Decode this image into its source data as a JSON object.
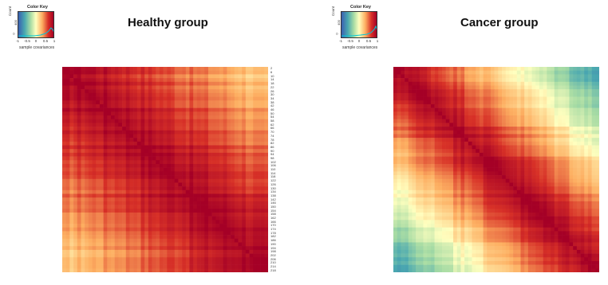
{
  "chart_data": [
    {
      "type": "heatmap",
      "title": "Healthy group",
      "color_key": {
        "title": "Color Key",
        "xlabel": "sample covariances",
        "ylabel": "Count",
        "ticks": [
          "-1",
          "-0.5",
          "0",
          "0.5",
          "1"
        ],
        "count_ticks": [
          "0",
          "400"
        ]
      },
      "value_range": [
        -1,
        1
      ],
      "row_labels": [
        "2",
        "6",
        "10",
        "14",
        "18",
        "22",
        "26",
        "30",
        "34",
        "38",
        "42",
        "46",
        "50",
        "54",
        "58",
        "62",
        "66",
        "70",
        "74",
        "78",
        "82",
        "86",
        "90",
        "94",
        "98",
        "102",
        "106",
        "110",
        "114",
        "118",
        "122",
        "126",
        "130",
        "134",
        "138",
        "142",
        "146",
        "150",
        "154",
        "158",
        "162",
        "166",
        "170",
        "174",
        "178",
        "182",
        "186",
        "190",
        "194",
        "198",
        "202",
        "206",
        "210",
        "214",
        "218"
      ],
      "n_cols": 55,
      "min_edge_value": 0.2
    },
    {
      "type": "heatmap",
      "title": "Cancer group",
      "color_key": {
        "title": "Color Key",
        "xlabel": "sample covariances",
        "ylabel": "Count",
        "ticks": [
          "-1",
          "-0.5",
          "0",
          "0.5",
          "1"
        ],
        "count_ticks": [
          "0",
          "400"
        ]
      },
      "value_range": [
        -1,
        1
      ],
      "n_cols": 55,
      "min_edge_value": -0.6
    }
  ],
  "colors": {
    "low": "#3a8fb0",
    "mid": "#ffffbf",
    "high": "#a50026"
  }
}
